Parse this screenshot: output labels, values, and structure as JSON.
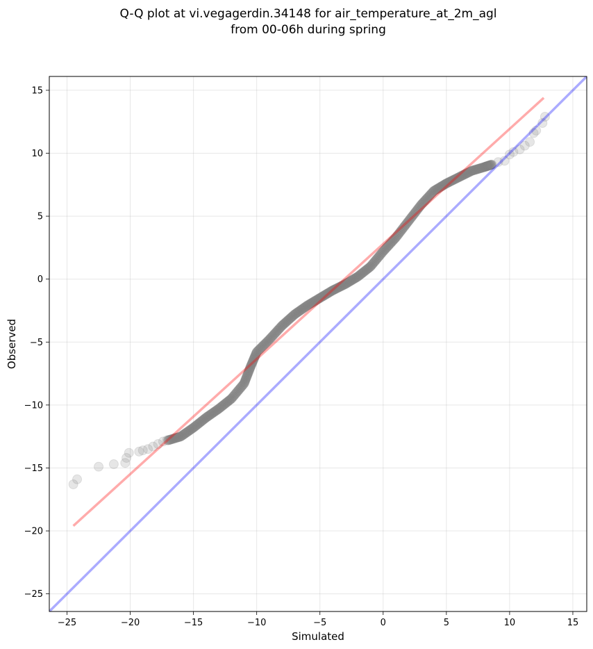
{
  "chart_data": {
    "type": "scatter",
    "title": [
      "Q-Q plot at vi.vegagerdin.34148 for air_temperature_at_2m_agl",
      "from 00-06h during spring"
    ],
    "xlabel": "Simulated",
    "ylabel": "Observed",
    "xlim": [
      -26.4,
      16.1
    ],
    "ylim": [
      -26.4,
      16.1
    ],
    "xticks": [
      -25,
      -20,
      -15,
      -10,
      -5,
      0,
      5,
      10,
      15
    ],
    "yticks": [
      -25,
      -20,
      -15,
      -10,
      -5,
      0,
      5,
      10,
      15
    ],
    "xtick_labels": [
      "−25",
      "−20",
      "−15",
      "−10",
      "−5",
      "0",
      "5",
      "10",
      "15"
    ],
    "ytick_labels": [
      "−25",
      "−20",
      "−15",
      "−10",
      "−5",
      "0",
      "5",
      "10",
      "15"
    ],
    "grid": true,
    "colors": {
      "points": "#808080",
      "fit_line": "#ff0000",
      "identity_line": "#0000ff"
    },
    "fit_line": {
      "x": [
        -24.5,
        12.7
      ],
      "y": [
        -19.6,
        14.4
      ]
    },
    "identity_line": {
      "x": [
        -26.4,
        16.1
      ],
      "y": [
        -26.4,
        16.1
      ]
    },
    "points_sparse": [
      [
        -24.5,
        -16.3
      ],
      [
        -24.2,
        -15.9
      ],
      [
        -22.5,
        -14.9
      ],
      [
        -21.3,
        -14.7
      ],
      [
        -20.4,
        -14.6
      ],
      [
        -20.3,
        -14.2
      ],
      [
        -20.1,
        -13.8
      ],
      [
        -19.3,
        -13.7
      ],
      [
        -19.0,
        -13.6
      ],
      [
        -18.6,
        -13.5
      ],
      [
        -18.2,
        -13.3
      ],
      [
        -17.8,
        -13.1
      ],
      [
        -17.4,
        -12.9
      ],
      [
        -17.1,
        -12.8
      ],
      [
        8.6,
        9.1
      ],
      [
        9.1,
        9.3
      ],
      [
        9.6,
        9.4
      ],
      [
        10.0,
        9.9
      ],
      [
        10.3,
        10.1
      ],
      [
        10.8,
        10.3
      ],
      [
        11.2,
        10.6
      ],
      [
        11.6,
        10.9
      ],
      [
        11.9,
        11.6
      ],
      [
        12.1,
        11.8
      ],
      [
        12.6,
        12.4
      ],
      [
        12.8,
        12.9
      ]
    ],
    "quantile_curve": [
      [
        -17.0,
        -12.8
      ],
      [
        -16.0,
        -12.5
      ],
      [
        -15.0,
        -11.8
      ],
      [
        -14.0,
        -11.0
      ],
      [
        -13.0,
        -10.3
      ],
      [
        -12.0,
        -9.5
      ],
      [
        -11.0,
        -8.3
      ],
      [
        -10.5,
        -7.0
      ],
      [
        -10.0,
        -5.8
      ],
      [
        -9.0,
        -4.8
      ],
      [
        -8.0,
        -3.7
      ],
      [
        -7.0,
        -2.8
      ],
      [
        -6.0,
        -2.1
      ],
      [
        -5.0,
        -1.5
      ],
      [
        -4.0,
        -0.9
      ],
      [
        -3.0,
        -0.4
      ],
      [
        -2.0,
        0.2
      ],
      [
        -1.0,
        1.0
      ],
      [
        0.0,
        2.2
      ],
      [
        1.0,
        3.3
      ],
      [
        2.0,
        4.6
      ],
      [
        3.0,
        5.9
      ],
      [
        4.0,
        7.0
      ],
      [
        5.0,
        7.6
      ],
      [
        6.0,
        8.1
      ],
      [
        7.0,
        8.6
      ],
      [
        8.0,
        8.9
      ],
      [
        8.6,
        9.1
      ]
    ]
  }
}
